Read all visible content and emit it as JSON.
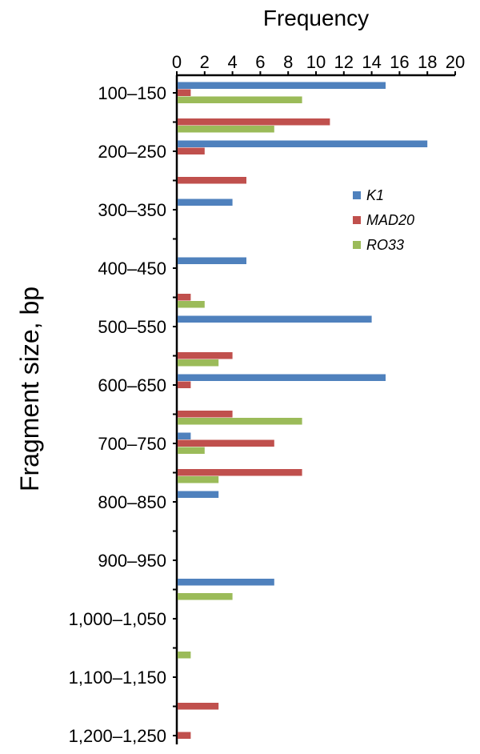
{
  "chart_data": {
    "type": "bar",
    "orientation": "horizontal",
    "xlabel": "Frequency",
    "ylabel": "Fragment size, bp",
    "xlim": [
      0,
      20
    ],
    "xticks": [
      0,
      2,
      4,
      6,
      8,
      10,
      12,
      14,
      16,
      18,
      20
    ],
    "grid": false,
    "legend_position": "right",
    "categories": [
      "100–150",
      "150–200",
      "200–250",
      "250–300",
      "300–350",
      "350–400",
      "400–450",
      "450–500",
      "500–550",
      "550–600",
      "600–650",
      "650–700",
      "700–750",
      "750–800",
      "800–850",
      "850–900",
      "900–950",
      "950–1,000",
      "1,000–1,050",
      "1,050–1,100",
      "1,100–1,150",
      "1,150–1,200",
      "1,200–1,250"
    ],
    "category_labels": [
      "100–150",
      "",
      "200–250",
      "",
      "300–350",
      "",
      "400–450",
      "",
      "500–550",
      "",
      "600–650",
      "",
      "700–750",
      "",
      "800–850",
      "",
      "900–950",
      "",
      "1,000–1,050",
      "",
      "1,100–1,150",
      "",
      "1,200–1,250"
    ],
    "series": [
      {
        "name": "K1",
        "color": "#4F81BD",
        "values": [
          15,
          0,
          18,
          0,
          4,
          0,
          5,
          0,
          14,
          0,
          15,
          0,
          1,
          0,
          3,
          0,
          0,
          7,
          0,
          0,
          0,
          0,
          0
        ]
      },
      {
        "name": "MAD20",
        "color": "#C0504D",
        "values": [
          1,
          11,
          2,
          5,
          0,
          0,
          0,
          1,
          0,
          4,
          1,
          4,
          7,
          9,
          0,
          0,
          0,
          0,
          0,
          0,
          0,
          3,
          1
        ]
      },
      {
        "name": "RO33",
        "color": "#9BBB59",
        "values": [
          9,
          7,
          0,
          0,
          0,
          0,
          0,
          2,
          0,
          3,
          0,
          9,
          2,
          3,
          0,
          0,
          0,
          4,
          0,
          1,
          0,
          0,
          0
        ]
      }
    ]
  }
}
